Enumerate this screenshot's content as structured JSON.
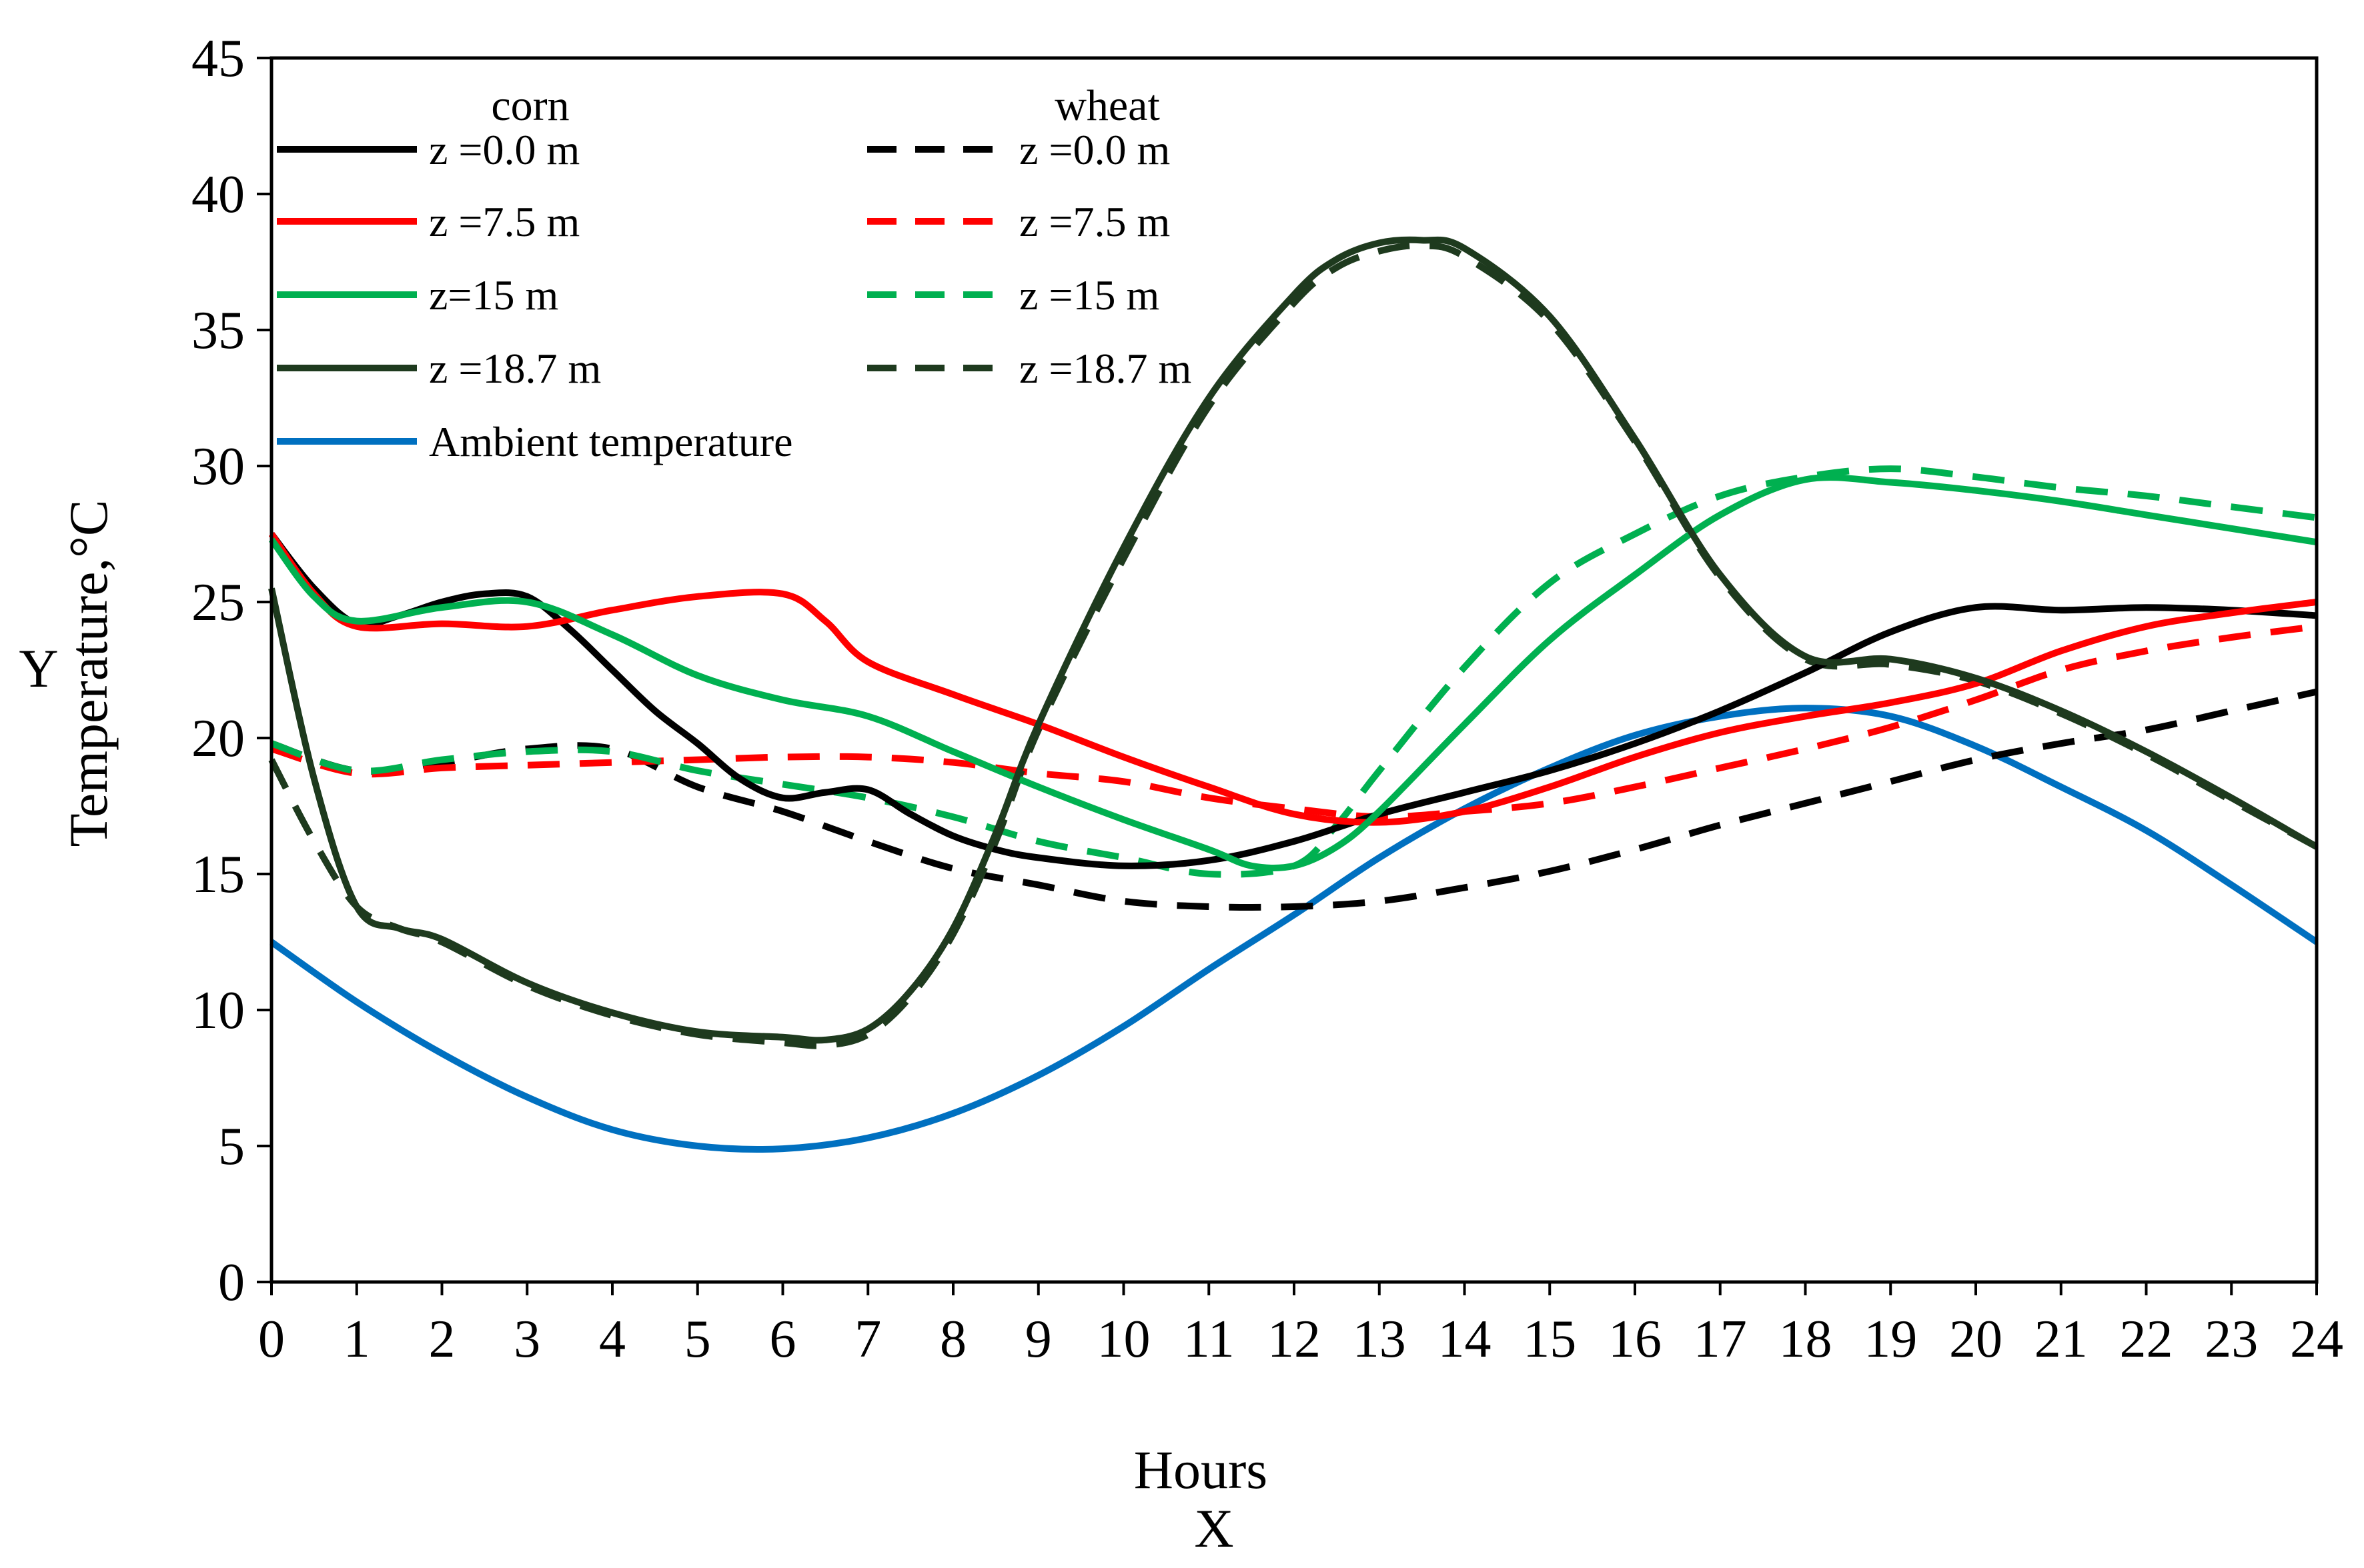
{
  "colors": {
    "black": "#000000",
    "red": "#ff0000",
    "green": "#00b050",
    "darkgreen": "#1e3a1e",
    "blue": "#0070c0",
    "background": "#ffffff"
  },
  "chart_data": {
    "type": "line",
    "title": "",
    "xlabel": "Hours",
    "xlabel_letter": "X",
    "ylabel": "Temperature,°C",
    "ylabel_letter": "Y",
    "xlim": [
      0,
      24
    ],
    "ylim": [
      0,
      45
    ],
    "xticks": [
      "0",
      "1",
      "2",
      "3",
      "4",
      "5",
      "6",
      "7",
      "8",
      "9",
      "10",
      "11",
      "12",
      "13",
      "14",
      "15",
      "16",
      "17",
      "18",
      "19",
      "20",
      "21",
      "22",
      "23",
      "24"
    ],
    "yticks": [
      "0",
      "5",
      "10",
      "15",
      "20",
      "25",
      "30",
      "35",
      "40",
      "45"
    ],
    "grid": false,
    "legend_position": "top-left",
    "legend_headers": {
      "corn": "corn",
      "wheat": "wheat"
    },
    "series": [
      {
        "name": "z =0.0 m",
        "group": "corn",
        "color": "black",
        "dash": "solid",
        "points": [
          [
            0,
            27.5
          ],
          [
            0.5,
            25.5
          ],
          [
            1,
            24.2
          ],
          [
            1.5,
            24.5
          ],
          [
            2,
            25
          ],
          [
            2.5,
            25.3
          ],
          [
            3,
            25.2
          ],
          [
            3.5,
            24
          ],
          [
            4,
            22.5
          ],
          [
            4.5,
            21
          ],
          [
            5,
            19.8
          ],
          [
            5.5,
            18.5
          ],
          [
            6,
            17.8
          ],
          [
            6.5,
            18
          ],
          [
            7,
            18.1
          ],
          [
            7.5,
            17.2
          ],
          [
            8,
            16.4
          ],
          [
            8.5,
            15.9
          ],
          [
            9,
            15.6
          ],
          [
            10,
            15.3
          ],
          [
            11,
            15.5
          ],
          [
            12,
            16.2
          ],
          [
            13,
            17.2
          ],
          [
            14,
            18
          ],
          [
            15,
            18.8
          ],
          [
            16,
            19.8
          ],
          [
            17,
            21
          ],
          [
            18,
            22.4
          ],
          [
            19,
            23.9
          ],
          [
            20,
            24.8
          ],
          [
            21,
            24.7
          ],
          [
            22,
            24.8
          ],
          [
            23,
            24.7
          ],
          [
            24,
            24.5
          ]
        ]
      },
      {
        "name": "z =7.5 m",
        "group": "corn",
        "color": "red",
        "dash": "solid",
        "points": [
          [
            0,
            27.5
          ],
          [
            0.5,
            25.3
          ],
          [
            1,
            24.1
          ],
          [
            2,
            24.2
          ],
          [
            3,
            24.1
          ],
          [
            4,
            24.7
          ],
          [
            5,
            25.2
          ],
          [
            6,
            25.3
          ],
          [
            6.5,
            24.3
          ],
          [
            7,
            22.8
          ],
          [
            8,
            21.6
          ],
          [
            9,
            20.5
          ],
          [
            10,
            19.3
          ],
          [
            11,
            18.2
          ],
          [
            12,
            17.2
          ],
          [
            13,
            16.9
          ],
          [
            14,
            17.3
          ],
          [
            15,
            18.2
          ],
          [
            16,
            19.3
          ],
          [
            17,
            20.2
          ],
          [
            18,
            20.8
          ],
          [
            19,
            21.3
          ],
          [
            20,
            22
          ],
          [
            21,
            23.2
          ],
          [
            22,
            24.1
          ],
          [
            23,
            24.6
          ],
          [
            24,
            25
          ]
        ]
      },
      {
        "name": "z=15 m",
        "group": "corn",
        "color": "green",
        "dash": "solid",
        "points": [
          [
            0,
            27.3
          ],
          [
            0.5,
            25.2
          ],
          [
            1,
            24.3
          ],
          [
            2,
            24.8
          ],
          [
            3,
            25
          ],
          [
            4,
            23.8
          ],
          [
            5,
            22.3
          ],
          [
            6,
            21.4
          ],
          [
            7,
            20.8
          ],
          [
            8,
            19.5
          ],
          [
            9,
            18.2
          ],
          [
            10,
            17
          ],
          [
            11,
            15.9
          ],
          [
            11.5,
            15.3
          ],
          [
            12,
            15.3
          ],
          [
            12.5,
            16
          ],
          [
            13,
            17.3
          ],
          [
            14,
            20.5
          ],
          [
            15,
            23.6
          ],
          [
            16,
            26
          ],
          [
            17,
            28.2
          ],
          [
            18,
            29.5
          ],
          [
            19,
            29.4
          ],
          [
            20,
            29.1
          ],
          [
            21,
            28.7
          ],
          [
            22,
            28.2
          ],
          [
            23,
            27.7
          ],
          [
            24,
            27.2
          ]
        ]
      },
      {
        "name": "z =18.7 m",
        "group": "corn",
        "color": "darkgreen",
        "dash": "solid",
        "points": [
          [
            0,
            25.5
          ],
          [
            0.5,
            18.5
          ],
          [
            1,
            13.8
          ],
          [
            1.5,
            13
          ],
          [
            2,
            12.6
          ],
          [
            3,
            11
          ],
          [
            4,
            9.9
          ],
          [
            5,
            9.2
          ],
          [
            6,
            9
          ],
          [
            6.5,
            8.9
          ],
          [
            7,
            9.3
          ],
          [
            7.5,
            10.7
          ],
          [
            8,
            13
          ],
          [
            8.5,
            16.5
          ],
          [
            9,
            20.5
          ],
          [
            10,
            27
          ],
          [
            11,
            32.5
          ],
          [
            12,
            36.3
          ],
          [
            12.5,
            37.6
          ],
          [
            13,
            38.2
          ],
          [
            13.5,
            38.3
          ],
          [
            14,
            38
          ],
          [
            15,
            35.5
          ],
          [
            16,
            31
          ],
          [
            17,
            26
          ],
          [
            18,
            23
          ],
          [
            19,
            22.9
          ],
          [
            20,
            22.2
          ],
          [
            21,
            21
          ],
          [
            22,
            19.5
          ],
          [
            23,
            17.8
          ],
          [
            24,
            16
          ]
        ]
      },
      {
        "name": "z =0.0 m",
        "group": "wheat",
        "color": "black",
        "dash": "dashed",
        "points": [
          [
            0,
            19.8
          ],
          [
            1,
            18.8
          ],
          [
            2,
            19.1
          ],
          [
            3,
            19.6
          ],
          [
            4,
            19.6
          ],
          [
            5,
            18.2
          ],
          [
            6,
            17.3
          ],
          [
            7,
            16.2
          ],
          [
            8,
            15.2
          ],
          [
            9,
            14.6
          ],
          [
            10,
            14
          ],
          [
            11,
            13.8
          ],
          [
            12,
            13.8
          ],
          [
            13,
            14
          ],
          [
            14,
            14.5
          ],
          [
            15,
            15.1
          ],
          [
            16,
            15.9
          ],
          [
            17,
            16.8
          ],
          [
            18,
            17.6
          ],
          [
            19,
            18.4
          ],
          [
            20,
            19.2
          ],
          [
            21,
            19.8
          ],
          [
            22,
            20.3
          ],
          [
            23,
            21
          ],
          [
            24,
            21.7
          ]
        ]
      },
      {
        "name": "z =7.5 m",
        "group": "wheat",
        "color": "red",
        "dash": "dashed",
        "points": [
          [
            0,
            19.6
          ],
          [
            1,
            18.7
          ],
          [
            2,
            18.9
          ],
          [
            3,
            19
          ],
          [
            4,
            19.1
          ],
          [
            5,
            19.2
          ],
          [
            6,
            19.3
          ],
          [
            7,
            19.3
          ],
          [
            8,
            19.1
          ],
          [
            9,
            18.7
          ],
          [
            10,
            18.4
          ],
          [
            11,
            17.8
          ],
          [
            12,
            17.4
          ],
          [
            13,
            17.1
          ],
          [
            14,
            17.3
          ],
          [
            15,
            17.6
          ],
          [
            16,
            18.2
          ],
          [
            17,
            18.9
          ],
          [
            18,
            19.6
          ],
          [
            19,
            20.4
          ],
          [
            20,
            21.4
          ],
          [
            21,
            22.5
          ],
          [
            22,
            23.2
          ],
          [
            23,
            23.7
          ],
          [
            24,
            24.1
          ]
        ]
      },
      {
        "name": "z =15 m",
        "group": "wheat",
        "color": "green",
        "dash": "dashed",
        "points": [
          [
            0,
            19.8
          ],
          [
            1,
            18.8
          ],
          [
            2,
            19.2
          ],
          [
            3,
            19.5
          ],
          [
            4,
            19.5
          ],
          [
            5,
            18.8
          ],
          [
            6,
            18.3
          ],
          [
            7,
            17.8
          ],
          [
            8,
            17.1
          ],
          [
            9,
            16.2
          ],
          [
            10,
            15.6
          ],
          [
            11,
            15
          ],
          [
            12,
            15.3
          ],
          [
            12.5,
            16.8
          ],
          [
            13,
            18.8
          ],
          [
            14,
            22.6
          ],
          [
            15,
            25.7
          ],
          [
            16,
            27.5
          ],
          [
            17,
            28.9
          ],
          [
            18,
            29.6
          ],
          [
            19,
            29.9
          ],
          [
            20,
            29.6
          ],
          [
            21,
            29.2
          ],
          [
            22,
            28.9
          ],
          [
            23,
            28.5
          ],
          [
            24,
            28.1
          ]
        ]
      },
      {
        "name": "z =18.7 m",
        "group": "wheat",
        "color": "darkgreen",
        "dash": "dashed",
        "points": [
          [
            0,
            19.2
          ],
          [
            0.5,
            16.2
          ],
          [
            1,
            13.8
          ],
          [
            1.5,
            13
          ],
          [
            2,
            12.5
          ],
          [
            3,
            10.9
          ],
          [
            4,
            9.8
          ],
          [
            5,
            9.1
          ],
          [
            6,
            8.8
          ],
          [
            6.5,
            8.7
          ],
          [
            7,
            9.1
          ],
          [
            7.5,
            10.5
          ],
          [
            8,
            12.8
          ],
          [
            8.5,
            16.2
          ],
          [
            9,
            20.3
          ],
          [
            10,
            26.6
          ],
          [
            11,
            32.2
          ],
          [
            12,
            36
          ],
          [
            12.5,
            37.3
          ],
          [
            13,
            37.9
          ],
          [
            13.5,
            38.1
          ],
          [
            14,
            37.7
          ],
          [
            15,
            35.3
          ],
          [
            16,
            30.9
          ],
          [
            17,
            25.9
          ],
          [
            18,
            22.9
          ],
          [
            19,
            22.7
          ],
          [
            20,
            22.1
          ],
          [
            21,
            20.9
          ],
          [
            22,
            19.4
          ],
          [
            23,
            17.7
          ],
          [
            24,
            16
          ]
        ]
      },
      {
        "name": "Ambient temperature",
        "group": "ambient",
        "color": "blue",
        "dash": "solid",
        "points": [
          [
            0,
            12.5
          ],
          [
            1,
            10.3
          ],
          [
            2,
            8.4
          ],
          [
            3,
            6.8
          ],
          [
            4,
            5.6
          ],
          [
            5,
            5
          ],
          [
            6,
            4.9
          ],
          [
            7,
            5.3
          ],
          [
            8,
            6.2
          ],
          [
            9,
            7.6
          ],
          [
            10,
            9.4
          ],
          [
            11,
            11.5
          ],
          [
            12,
            13.5
          ],
          [
            13,
            15.6
          ],
          [
            14,
            17.4
          ],
          [
            15,
            18.9
          ],
          [
            16,
            20.1
          ],
          [
            17,
            20.8
          ],
          [
            18,
            21.1
          ],
          [
            19,
            20.8
          ],
          [
            20,
            19.7
          ],
          [
            21,
            18.2
          ],
          [
            22,
            16.6
          ],
          [
            23,
            14.6
          ],
          [
            24,
            12.5
          ]
        ]
      }
    ]
  }
}
